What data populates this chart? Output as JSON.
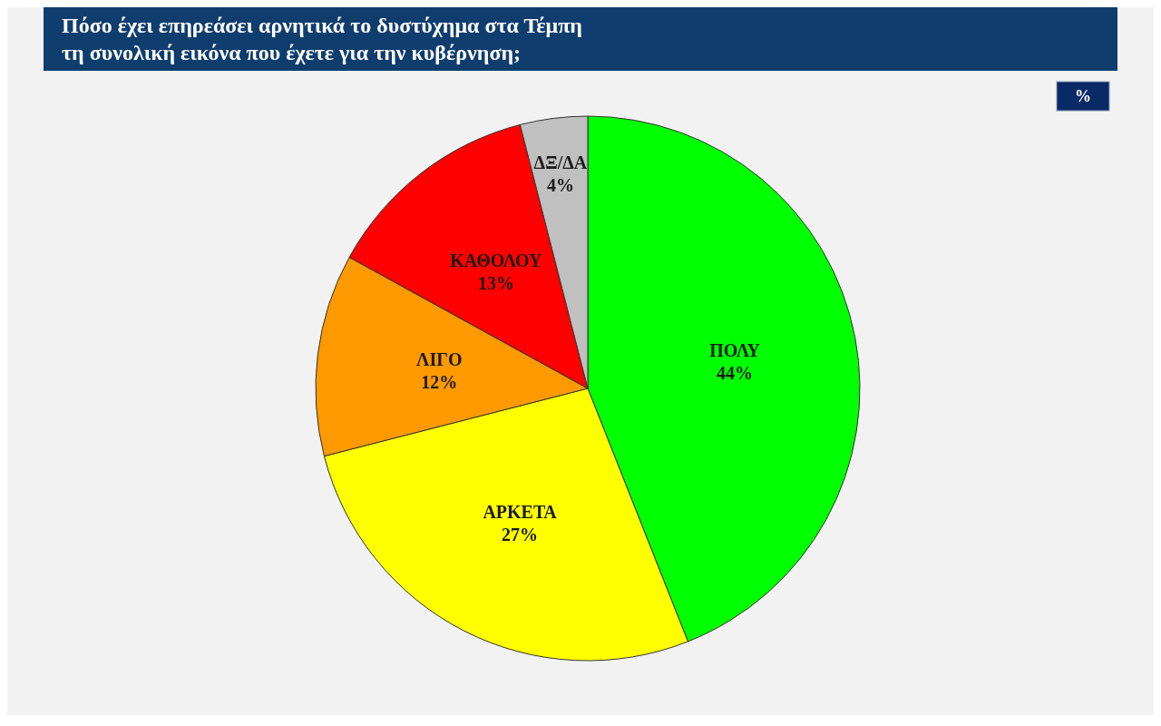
{
  "chart_data": {
    "type": "pie",
    "title": "Πόσο έχει επηρεάσει αρνητικά το δυστύχημα στα Τέμπη\nτη συνολική εικόνα που έχετε για την κυβέρνηση;",
    "categories": [
      "ΠΟΛΥ",
      "ΑΡΚΕΤΑ",
      "ΛΙΓΟ",
      "ΚΑΘΟΛΟΥ",
      "ΔΞ/ΔΑ"
    ],
    "values": [
      44,
      27,
      12,
      13,
      4
    ],
    "colors": [
      "#00ff00",
      "#ffff00",
      "#ff9900",
      "#ff0000",
      "#c0c0c0"
    ],
    "annotations": [
      "%"
    ],
    "value_labels": [
      "44%",
      "27%",
      "12%",
      "13%",
      "4%"
    ],
    "legend": false
  }
}
